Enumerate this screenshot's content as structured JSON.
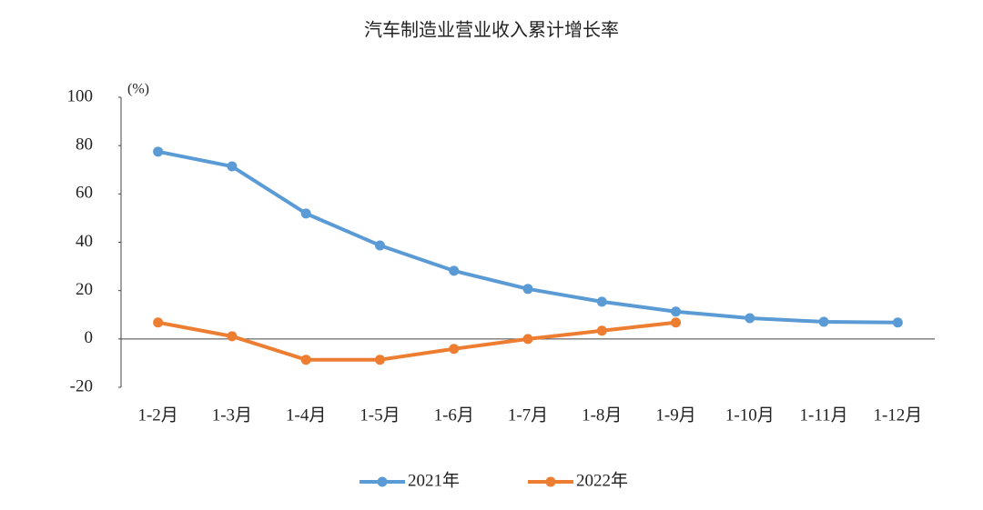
{
  "chart_data": {
    "type": "line",
    "title": "汽车制造业营业收入累计增长率",
    "ylabel": "(%)",
    "categories": [
      "1-2月",
      "1-3月",
      "1-4月",
      "1-5月",
      "1-6月",
      "1-7月",
      "1-8月",
      "1-9月",
      "1-10月",
      "1-11月",
      "1-12月"
    ],
    "series": [
      {
        "name": "2021年",
        "color": "#5b9bd5",
        "values": [
          77.5,
          71.4,
          51.9,
          38.7,
          28.2,
          20.7,
          15.4,
          11.3,
          8.6,
          7.1,
          6.8
        ]
      },
      {
        "name": "2022年",
        "color": "#ed7d31",
        "values": [
          6.8,
          1.1,
          -8.6,
          -8.6,
          -4.1,
          0,
          3.4,
          6.8,
          null,
          null,
          null
        ]
      }
    ],
    "ylim": [
      -20,
      100
    ],
    "yticks": [
      -20,
      0,
      20,
      40,
      60,
      80,
      100
    ],
    "legend": "bottom"
  }
}
